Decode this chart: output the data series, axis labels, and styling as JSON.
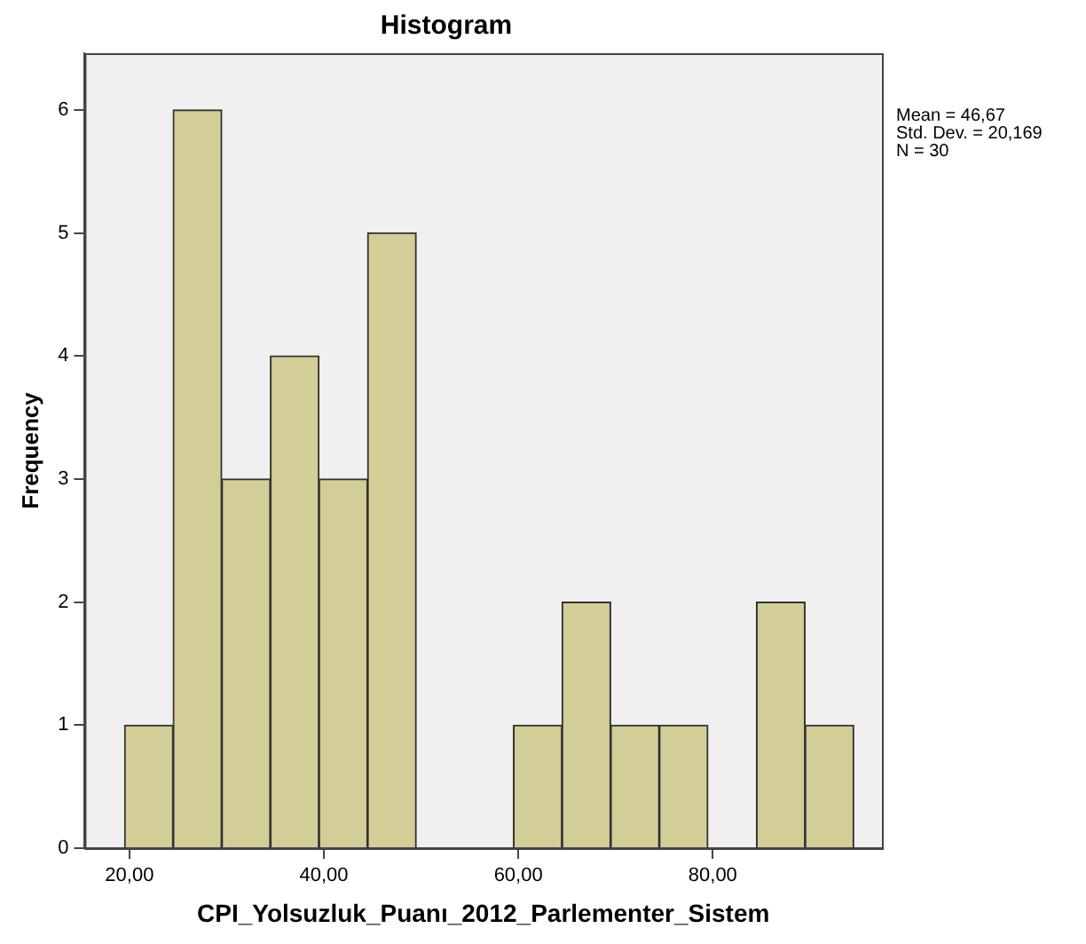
{
  "chart_data": {
    "type": "histogram",
    "title": "Histogram",
    "xlabel": "CPI_Yolsuzluk_Puanı_2012_Parlementer_Sistem",
    "ylabel": "Frequency",
    "bins": [
      19.5,
      24.5,
      29.5,
      34.5,
      39.5,
      44.5,
      49.5,
      54.5,
      59.5,
      64.5,
      69.5,
      74.5,
      79.5,
      84.5,
      89.5,
      94.5
    ],
    "values": [
      1,
      6,
      3,
      4,
      3,
      5,
      0,
      0,
      1,
      2,
      1,
      1,
      0,
      2,
      1
    ],
    "color": "#d3ce97",
    "xlim": [
      15.4,
      97.4
    ],
    "xticks": [
      {
        "value": 20,
        "label": "20,00"
      },
      {
        "value": 40,
        "label": "40,00"
      },
      {
        "value": 60,
        "label": "60,00"
      },
      {
        "value": 80,
        "label": "80,00"
      }
    ],
    "ylim": [
      0,
      6.46
    ],
    "yticks": [
      0,
      1,
      2,
      3,
      4,
      5,
      6
    ],
    "grid": false,
    "legend": false,
    "annotations": [
      "Mean = 46,67",
      "Std. Dev. = 20,169",
      "N = 30"
    ]
  }
}
